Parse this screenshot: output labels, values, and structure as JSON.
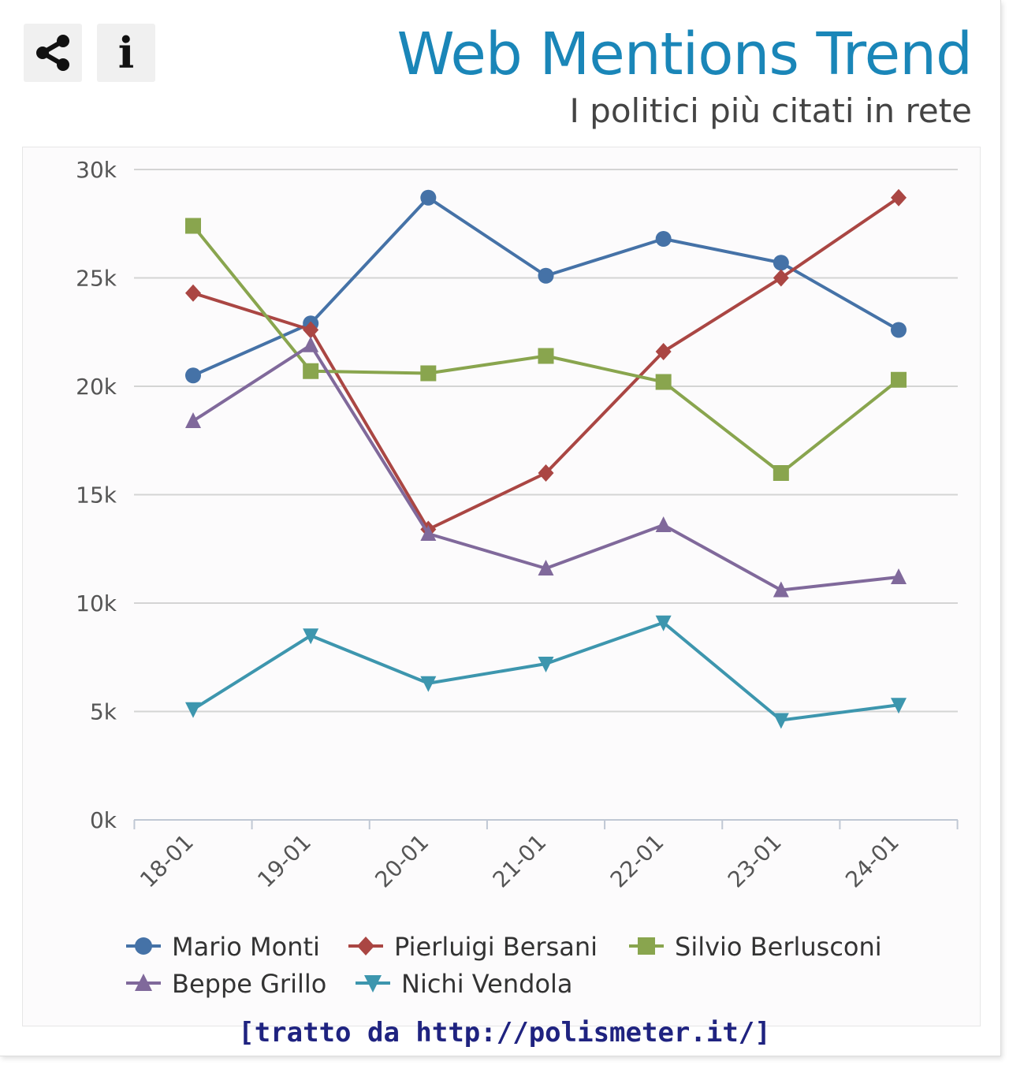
{
  "toolbar": {
    "share_icon": "share-icon",
    "info_label": "i"
  },
  "header": {
    "title": "Web Mentions Trend",
    "subtitle": "I politici più citati in rete"
  },
  "source_note": "[tratto da http://polismeter.it/]",
  "colors": {
    "title": "#1a86b8",
    "grid": "#d4d4d4",
    "Mario Monti": "#4572a7",
    "Pierluigi Bersani": "#aa4643",
    "Silvio Berlusconi": "#89a54e",
    "Beppe Grillo": "#80699b",
    "Nichi Vendola": "#3d96ae"
  },
  "chart_data": {
    "type": "line",
    "title": "Web Mentions Trend",
    "subtitle": "I politici più citati in rete",
    "xlabel": "",
    "ylabel": "",
    "x": [
      "18-01",
      "19-01",
      "20-01",
      "21-01",
      "22-01",
      "23-01",
      "24-01"
    ],
    "ylim": [
      0,
      30000
    ],
    "y_ticks": [
      0,
      5000,
      10000,
      15000,
      20000,
      25000,
      30000
    ],
    "y_tick_labels": [
      "0k",
      "5k",
      "10k",
      "15k",
      "20k",
      "25k",
      "30k"
    ],
    "grid": "horizontal",
    "legend": "bottom",
    "series": [
      {
        "name": "Mario Monti",
        "marker": "circle",
        "values": [
          20500,
          22900,
          28700,
          25100,
          26800,
          25700,
          22600
        ]
      },
      {
        "name": "Pierluigi Bersani",
        "marker": "diamond",
        "values": [
          24300,
          22600,
          13400,
          16000,
          21600,
          25000,
          28700
        ]
      },
      {
        "name": "Silvio Berlusconi",
        "marker": "square",
        "values": [
          27400,
          20700,
          20600,
          21400,
          20200,
          16000,
          20300
        ]
      },
      {
        "name": "Beppe Grillo",
        "marker": "triangle",
        "values": [
          18400,
          21900,
          13200,
          11600,
          13600,
          10600,
          11200
        ]
      },
      {
        "name": "Nichi Vendola",
        "marker": "triangle-down",
        "values": [
          5100,
          8500,
          6300,
          7200,
          9100,
          4600,
          5300
        ]
      }
    ]
  }
}
